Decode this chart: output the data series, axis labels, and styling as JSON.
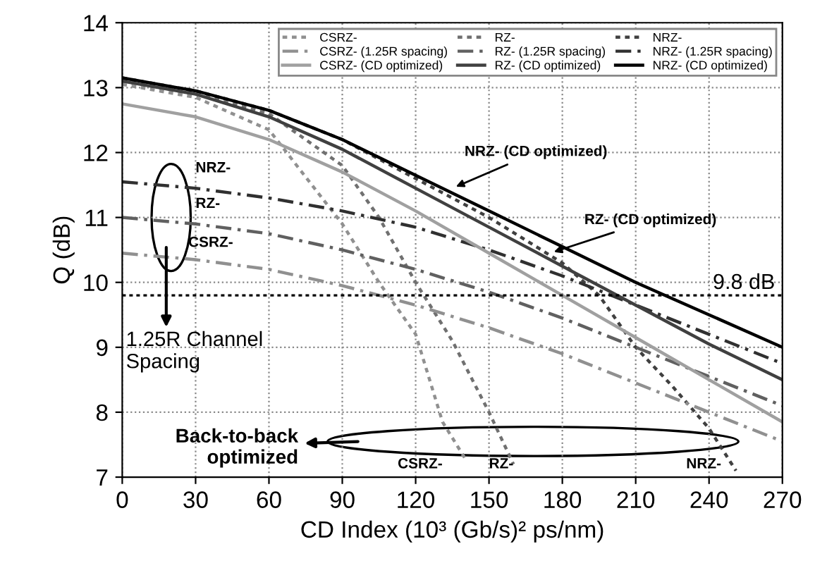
{
  "chart_data": {
    "type": "line",
    "xlabel": "CD Index (10³ (Gb/s)² ps/nm)",
    "ylabel": "Q (dB)",
    "xlim": [
      0,
      270
    ],
    "ylim": [
      7,
      14
    ],
    "xticks": [
      0,
      30,
      60,
      90,
      120,
      150,
      180,
      210,
      240,
      270
    ],
    "yticks": [
      7,
      8,
      9,
      10,
      11,
      12,
      13,
      14
    ],
    "grid": true,
    "legend": "top",
    "series": [
      {
        "name": "CSRZ-",
        "color": "#909090",
        "line_style": "dotted",
        "x": [
          0,
          30,
          60,
          90,
          105,
          120,
          131,
          140
        ],
        "values": [
          13.05,
          12.85,
          12.35,
          10.9,
          10.0,
          9.2,
          7.85,
          7.3
        ]
      },
      {
        "name": "RZ-",
        "color": "#707070",
        "line_style": "dotted",
        "x": [
          0,
          30,
          60,
          90,
          105,
          120,
          135,
          150,
          160
        ],
        "values": [
          13.1,
          12.9,
          12.6,
          11.8,
          11.0,
          10.0,
          9.1,
          8.0,
          7.2
        ]
      },
      {
        "name": "NRZ-",
        "color": "#404040",
        "line_style": "dotted",
        "x": [
          0,
          30,
          60,
          90,
          120,
          150,
          180,
          195,
          210,
          225,
          240,
          251
        ],
        "values": [
          13.15,
          12.95,
          12.65,
          12.2,
          11.6,
          11.0,
          10.3,
          9.8,
          9.0,
          8.4,
          7.75,
          7.1
        ]
      },
      {
        "name": "CSRZ- (1.25R spacing)",
        "color": "#909090",
        "line_style": "dashed",
        "x": [
          0,
          30,
          60,
          90,
          120,
          150,
          180,
          210,
          240,
          270
        ],
        "values": [
          10.45,
          10.35,
          10.2,
          9.95,
          9.65,
          9.3,
          8.9,
          8.45,
          8.0,
          7.55
        ]
      },
      {
        "name": "RZ- (1.25R spacing)",
        "color": "#606060",
        "line_style": "dashed",
        "x": [
          0,
          30,
          60,
          90,
          120,
          150,
          180,
          210,
          240,
          270
        ],
        "values": [
          11.0,
          10.9,
          10.75,
          10.5,
          10.2,
          9.85,
          9.45,
          9.0,
          8.55,
          8.1
        ]
      },
      {
        "name": "NRZ- (1.25R spacing)",
        "color": "#303030",
        "line_style": "dashed",
        "x": [
          0,
          30,
          60,
          90,
          120,
          150,
          180,
          210,
          240,
          270
        ],
        "values": [
          11.55,
          11.45,
          11.3,
          11.1,
          10.85,
          10.5,
          10.1,
          9.65,
          9.2,
          8.75
        ]
      },
      {
        "name": "CSRZ- (CD optimized)",
        "color": "#a0a0a0",
        "line_style": "solid",
        "x": [
          0,
          30,
          60,
          90,
          120,
          150,
          180,
          210,
          240,
          270
        ],
        "values": [
          12.75,
          12.55,
          12.2,
          11.7,
          11.1,
          10.45,
          9.8,
          9.15,
          8.5,
          7.85
        ]
      },
      {
        "name": "RZ- (CD optimized)",
        "color": "#404040",
        "line_style": "solid",
        "x": [
          0,
          30,
          60,
          90,
          120,
          150,
          180,
          210,
          240,
          270
        ],
        "values": [
          13.1,
          12.9,
          12.55,
          12.05,
          11.45,
          10.85,
          10.25,
          9.65,
          9.05,
          8.5
        ]
      },
      {
        "name": "NRZ- (CD optimized)",
        "color": "#000000",
        "line_style": "solid",
        "x": [
          0,
          30,
          60,
          90,
          120,
          150,
          180,
          210,
          240,
          270
        ],
        "values": [
          13.15,
          12.95,
          12.65,
          12.2,
          11.65,
          11.1,
          10.55,
          10.0,
          9.5,
          9.0
        ]
      }
    ],
    "ref_lines": [
      {
        "axis": "y",
        "value": 9.8,
        "label": "9.8 dB",
        "color": "#000000",
        "line_style": "dotted"
      }
    ],
    "annotations": [
      "NRZ-",
      "RZ-",
      "CSRZ-",
      "1.25R Channel\nSpacing",
      {
        "text": "NRZ- (CD optimized)",
        "x": 135,
        "y": 11.45
      },
      {
        "text": "RZ- (CD optimized)",
        "x": 175,
        "y": 10.45
      },
      "Back-to-back\noptimized",
      "CSRZ-",
      {
        "text": "RZ-",
        "x": 160,
        "y": 7.3
      },
      {
        "text": "NRZ-",
        "x": 245,
        "y": 7.3
      }
    ]
  }
}
